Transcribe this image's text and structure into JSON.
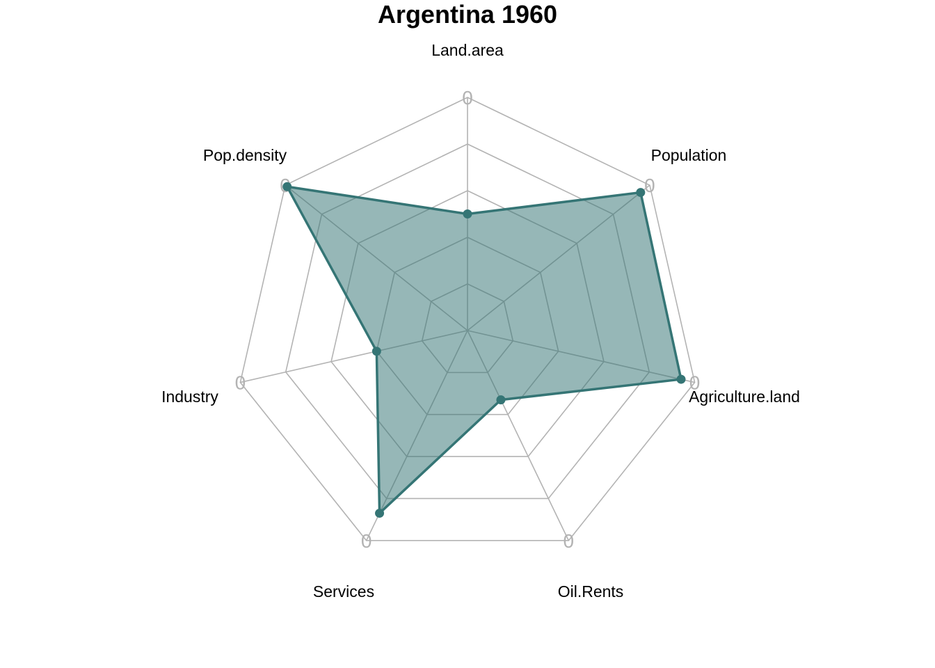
{
  "chart_data": {
    "type": "radar",
    "title": "Argentina 1960",
    "axes": [
      "Land.area",
      "Population",
      "Agriculture.land",
      "Oil.Rents",
      "Services",
      "Industry",
      "Pop.density"
    ],
    "series": [
      {
        "values": [
          0.5,
          0.95,
          0.94,
          0.33,
          0.87,
          0.4,
          0.99
        ]
      }
    ],
    "rlim": [
      0,
      1
    ],
    "grid_levels": 5,
    "tick_label": "0",
    "colors": {
      "line": "#357575",
      "fill": "#357575",
      "fill_opacity": 0.52,
      "grid": "#b3b3b3"
    }
  }
}
